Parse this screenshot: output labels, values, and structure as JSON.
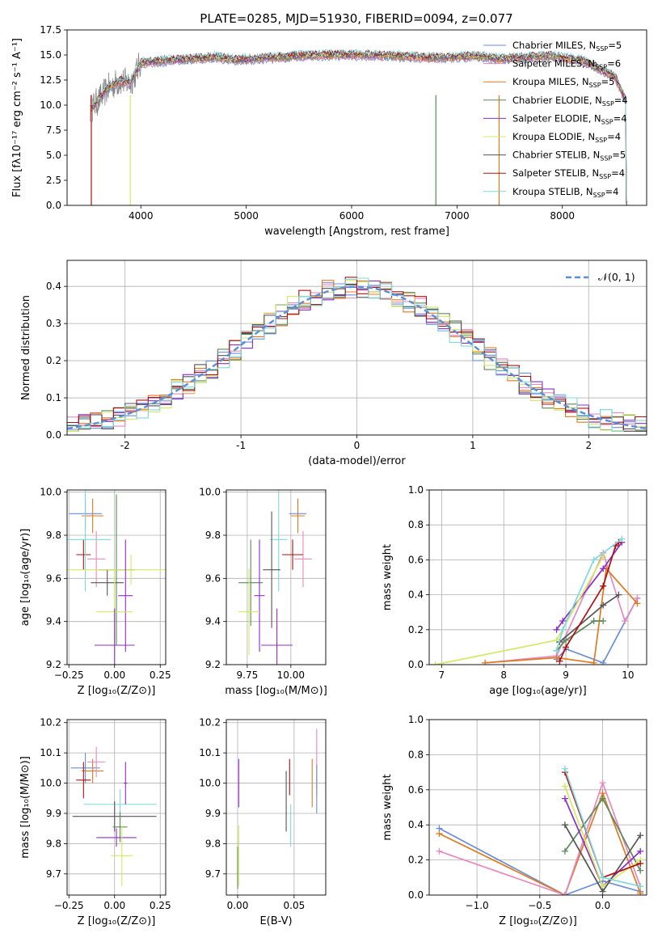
{
  "figure_title": "PLATE=0285, MJD=51930, FIBERID=0094, z=0.077",
  "colors": {
    "chabrier_miles": "#6a8fd8",
    "salpeter_miles": "#e58ac0",
    "kroupa_miles": "#e07a20",
    "chabrier_elodie": "#5a8a5a",
    "salpeter_elodie": "#8b2fc9",
    "kroupa_elodie": "#d4e862",
    "chabrier_stelib": "#555555",
    "salpeter_stelib": "#b01010",
    "kroupa_stelib": "#7fd8de",
    "normal_curve": "#5b8ed8"
  },
  "legend_spectrum": [
    {
      "key": "chabrier_miles",
      "prefix": "Chabrier MILES, N",
      "sub": "SSP",
      "suffix": "=5"
    },
    {
      "key": "salpeter_miles",
      "prefix": "Salpeter MILES, N",
      "sub": "SSP",
      "suffix": "=6"
    },
    {
      "key": "kroupa_miles",
      "prefix": "Kroupa MILES, N",
      "sub": "SSP",
      "suffix": "=5"
    },
    {
      "key": "chabrier_elodie",
      "prefix": "Chabrier ELODIE, N",
      "sub": "SSP",
      "suffix": "=4"
    },
    {
      "key": "salpeter_elodie",
      "prefix": "Salpeter ELODIE, N",
      "sub": "SSP",
      "suffix": "=4"
    },
    {
      "key": "kroupa_elodie",
      "prefix": "Kroupa ELODIE, N",
      "sub": "SSP",
      "suffix": "=4"
    },
    {
      "key": "chabrier_stelib",
      "prefix": "Chabrier STELIB, N",
      "sub": "SSP",
      "suffix": "=5"
    },
    {
      "key": "salpeter_stelib",
      "prefix": "Salpeter STELIB, N",
      "sub": "SSP",
      "suffix": "=4"
    },
    {
      "key": "kroupa_stelib",
      "prefix": "Kroupa STELIB, N",
      "sub": "SSP",
      "suffix": "=4"
    }
  ],
  "chart_data": [
    {
      "id": "spectrum",
      "type": "line",
      "xlabel": "wavelength [Angstrom, rest frame]",
      "ylabel": "Flux [fλ10⁻¹⁷ erg cm⁻² s⁻¹ A⁻¹]",
      "xlim": [
        3300,
        8800
      ],
      "ylim": [
        0,
        17.5
      ],
      "xticks": [
        4000,
        5000,
        6000,
        7000,
        8000
      ],
      "yticks": [
        0.0,
        2.5,
        5.0,
        7.5,
        10.0,
        12.5,
        15.0,
        17.5
      ],
      "grid": false,
      "legend_position": "upper right",
      "continuum": [
        [
          3520,
          9.6
        ],
        [
          3600,
          10.5
        ],
        [
          3700,
          11.8
        ],
        [
          3800,
          12.4
        ],
        [
          3900,
          12.2
        ],
        [
          4000,
          14.2
        ],
        [
          4100,
          14.3
        ],
        [
          4300,
          14.5
        ],
        [
          4500,
          14.6
        ],
        [
          4700,
          14.8
        ],
        [
          4900,
          14.5
        ],
        [
          5200,
          14.7
        ],
        [
          5500,
          14.9
        ],
        [
          5800,
          15.0
        ],
        [
          6100,
          15.0
        ],
        [
          6400,
          14.9
        ],
        [
          6800,
          14.7
        ],
        [
          7200,
          14.9
        ],
        [
          7400,
          14.6
        ],
        [
          7600,
          14.7
        ],
        [
          7900,
          14.9
        ],
        [
          8200,
          14.4
        ],
        [
          8500,
          12.8
        ],
        [
          8600,
          10.5
        ]
      ]
    },
    {
      "id": "residuals",
      "type": "line",
      "xlabel": "(data-model)/error",
      "ylabel": "Normed distribution",
      "xlim": [
        -2.5,
        2.5
      ],
      "ylim": [
        0,
        0.47
      ],
      "xticks": [
        -2,
        -1,
        0,
        1,
        2
      ],
      "yticks": [
        0.0,
        0.1,
        0.2,
        0.3,
        0.4
      ],
      "grid": true,
      "legend_position": "upper right",
      "legend": [
        {
          "key": "normal_curve",
          "label": "𝒩(0, 1)"
        }
      ],
      "normal_curve": {
        "mean": 0,
        "sigma": 1
      }
    },
    {
      "id": "age_vs_Z",
      "type": "scatter",
      "xlabel": "Z [log₁₀(Z/Z⊙)]",
      "ylabel": "age  [log₁₀(age/yr)]",
      "xlim": [
        -0.26,
        0.28
      ],
      "ylim": [
        9.2,
        10.01
      ],
      "xticks": [
        -0.25,
        0.0,
        0.25
      ],
      "xticklabels": [
        "−0.25",
        "0.00",
        "0.25"
      ],
      "yticks": [
        9.2,
        9.4,
        9.6,
        9.8,
        10.0
      ],
      "grid": true,
      "points": [
        {
          "key": "chabrier_miles",
          "x": -0.16,
          "xerr": 0.09,
          "y": 9.9,
          "yerr": 0.07
        },
        {
          "key": "kroupa_miles",
          "x": -0.12,
          "xerr": 0.06,
          "y": 9.89,
          "yerr": 0.08
        },
        {
          "key": "salpeter_miles",
          "x": -0.1,
          "xerr": 0.05,
          "y": 9.69,
          "yerr": 0.13
        },
        {
          "key": "salpeter_stelib",
          "x": -0.17,
          "xerr": 0.04,
          "y": 9.71,
          "yerr": 0.07
        },
        {
          "key": "kroupa_stelib",
          "x": -0.16,
          "xerr": 0.14,
          "y": 9.78,
          "yerr": 0.24
        },
        {
          "key": "chabrier_elodie",
          "x": 0.01,
          "xerr": 0.1,
          "y": 9.64,
          "yerr": 0.35
        },
        {
          "key": "chabrier_stelib",
          "x": -0.04,
          "xerr": 0.09,
          "y": 9.58,
          "yerr": 0.06
        },
        {
          "key": "kroupa_elodie",
          "x": 0.09,
          "xerr": 0.35,
          "y": 9.64,
          "yerr": 0.07
        },
        {
          "key": "salpeter_elodie",
          "x": 0.06,
          "xerr": 0.04,
          "y": 9.52,
          "yerr": 0.26
        },
        {
          "key": "kroupa_elodie",
          "x": 0.0,
          "xerr": 0.1,
          "y": 9.445,
          "yerr": 0.2
        },
        {
          "key": "salpeter_elodie",
          "x": 0.0,
          "xerr": 0.11,
          "y": 9.29,
          "yerr": 0.17
        }
      ]
    },
    {
      "id": "age_vs_mass",
      "type": "scatter",
      "xlabel": "mass [log₁₀(M/M⊙)]",
      "ylabel": "",
      "xlim": [
        9.63,
        10.2
      ],
      "ylim": [
        9.2,
        10.01
      ],
      "xticks": [
        9.75,
        10.0
      ],
      "xticklabels": [
        "9.75",
        "10.00"
      ],
      "yticks": [
        9.2,
        9.4,
        9.6,
        9.8,
        10.0
      ],
      "grid": true,
      "points": [
        {
          "key": "chabrier_miles",
          "x": 10.04,
          "xerr": 0.05,
          "y": 9.9,
          "yerr": 0.07
        },
        {
          "key": "kroupa_miles",
          "x": 10.04,
          "xerr": 0.04,
          "y": 9.89,
          "yerr": 0.08
        },
        {
          "key": "salpeter_miles",
          "x": 10.07,
          "xerr": 0.05,
          "y": 9.69,
          "yerr": 0.13
        },
        {
          "key": "salpeter_stelib",
          "x": 10.01,
          "xerr": 0.06,
          "y": 9.71,
          "yerr": 0.07
        },
        {
          "key": "kroupa_stelib",
          "x": 9.93,
          "xerr": 0.05,
          "y": 9.78,
          "yerr": 0.24
        },
        {
          "key": "chabrier_stelib",
          "x": 9.89,
          "xerr": 0.05,
          "y": 9.64,
          "yerr": 0.27
        },
        {
          "key": "chabrier_elodie",
          "x": 9.77,
          "xerr": 0.07,
          "y": 9.58,
          "yerr": 0.2
        },
        {
          "key": "salpeter_elodie",
          "x": 9.82,
          "xerr": 0.03,
          "y": 9.52,
          "yerr": 0.26
        },
        {
          "key": "kroupa_elodie",
          "x": 9.76,
          "xerr": 0.06,
          "y": 9.445,
          "yerr": 0.2
        },
        {
          "key": "salpeter_elodie",
          "x": 9.92,
          "xerr": 0.09,
          "y": 9.29,
          "yerr": 0.17
        }
      ]
    },
    {
      "id": "mass_weight_vs_age",
      "type": "line",
      "xlabel": "age  [log₁₀(age/yr)]",
      "ylabel": "mass weight",
      "xlim": [
        6.8,
        10.3
      ],
      "ylim": [
        0,
        1.0
      ],
      "xticks": [
        7,
        8,
        9,
        10
      ],
      "yticks": [
        0.0,
        0.2,
        0.4,
        0.6,
        0.8,
        1.0
      ],
      "grid": true,
      "series": [
        {
          "key": "chabrier_miles",
          "x": [
            8.85,
            9.0,
            9.6,
            10.15
          ],
          "y": [
            0.03,
            0.09,
            0.01,
            0.38
          ]
        },
        {
          "key": "salpeter_miles",
          "x": [
            7.7,
            8.85,
            9.6,
            9.95,
            10.15
          ],
          "y": [
            0.01,
            0.05,
            0.64,
            0.25,
            0.38
          ]
        },
        {
          "key": "kroupa_miles",
          "x": [
            7.7,
            8.85,
            9.45,
            9.65,
            10.15
          ],
          "y": [
            0.01,
            0.04,
            0.01,
            0.55,
            0.35
          ]
        },
        {
          "key": "chabrier_elodie",
          "x": [
            8.85,
            9.0,
            9.45,
            9.6
          ],
          "y": [
            0.08,
            0.14,
            0.25,
            0.25
          ]
        },
        {
          "key": "salpeter_elodie",
          "x": [
            8.85,
            8.95,
            9.6,
            9.9
          ],
          "y": [
            0.2,
            0.25,
            0.55,
            0.7
          ]
        },
        {
          "key": "kroupa_elodie",
          "x": [
            6.9,
            8.85,
            9.6
          ],
          "y": [
            0.0,
            0.14,
            0.62
          ]
        },
        {
          "key": "chabrier_stelib",
          "x": [
            8.9,
            9.6,
            9.85
          ],
          "y": [
            0.13,
            0.34,
            0.4
          ]
        },
        {
          "key": "salpeter_stelib",
          "x": [
            8.9,
            9.0,
            9.6,
            9.8,
            9.85
          ],
          "y": [
            0.02,
            0.1,
            0.45,
            0.68,
            0.7
          ]
        },
        {
          "key": "kroupa_stelib",
          "x": [
            8.85,
            8.95,
            9.45,
            9.9
          ],
          "y": [
            0.08,
            0.2,
            0.6,
            0.72
          ]
        }
      ]
    },
    {
      "id": "mass_vs_Z",
      "type": "scatter",
      "xlabel": "Z [log₁₀(Z/Z⊙)]",
      "ylabel": "mass [log₁₀(M/M⊙)]",
      "xlim": [
        -0.26,
        0.28
      ],
      "ylim": [
        9.63,
        10.21
      ],
      "xticks": [
        -0.25,
        0.0,
        0.25
      ],
      "xticklabels": [
        "−0.25",
        "0.00",
        "0.25"
      ],
      "yticks": [
        9.7,
        9.8,
        9.9,
        10.0,
        10.1,
        10.2
      ],
      "grid": true,
      "points": [
        {
          "key": "chabrier_miles",
          "x": -0.16,
          "xerr": 0.08,
          "y": 10.05,
          "yerr": 0.05
        },
        {
          "key": "kroupa_miles",
          "x": -0.12,
          "xerr": 0.06,
          "y": 10.04,
          "yerr": 0.04
        },
        {
          "key": "salpeter_miles",
          "x": -0.1,
          "xerr": 0.05,
          "y": 10.07,
          "yerr": 0.05
        },
        {
          "key": "salpeter_stelib",
          "x": -0.17,
          "xerr": 0.04,
          "y": 10.01,
          "yerr": 0.06
        },
        {
          "key": "kroupa_stelib",
          "x": 0.03,
          "xerr": 0.2,
          "y": 9.93,
          "yerr": 0.05
        },
        {
          "key": "chabrier_stelib",
          "x": 0.0,
          "xerr": 0.23,
          "y": 9.89,
          "yerr": 0.05
        },
        {
          "key": "chabrier_elodie",
          "x": 0.03,
          "xerr": 0.04,
          "y": 9.855,
          "yerr": 0.05
        },
        {
          "key": "salpeter_elodie",
          "x": 0.01,
          "xerr": 0.11,
          "y": 9.82,
          "yerr": 0.03
        },
        {
          "key": "kroupa_elodie",
          "x": 0.04,
          "xerr": 0.06,
          "y": 9.76,
          "yerr": 0.1
        },
        {
          "key": "salpeter_elodie",
          "x": 0.06,
          "xerr": 0.01,
          "y": 10.0,
          "yerr": 0.07
        }
      ]
    },
    {
      "id": "mass_vs_EBV",
      "type": "scatter",
      "xlabel": "E(B-V)",
      "ylabel": "",
      "xlim": [
        -0.01,
        0.078
      ],
      "ylim": [
        9.63,
        10.21
      ],
      "xticks": [
        0.0,
        0.05
      ],
      "xticklabels": [
        "0.00",
        "0.05"
      ],
      "yticks": [
        9.7,
        9.8,
        9.9,
        10.0,
        10.1,
        10.2
      ],
      "grid": true,
      "points": [
        {
          "key": "salpeter_elodie",
          "x": 0.001,
          "xerr": 0,
          "y": 10.0,
          "yerr": 0.08
        },
        {
          "key": "kroupa_elodie",
          "x": 0.001,
          "xerr": 0,
          "y": 9.76,
          "yerr": 0.1
        },
        {
          "key": "chabrier_elodie",
          "x": 0.0,
          "xerr": 0,
          "y": 9.72,
          "yerr": 0.07
        },
        {
          "key": "chabrier_stelib",
          "x": 0.043,
          "xerr": 0,
          "y": 9.94,
          "yerr": 0.1
        },
        {
          "key": "salpeter_stelib",
          "x": 0.046,
          "xerr": 0,
          "y": 10.02,
          "yerr": 0.06
        },
        {
          "key": "kroupa_stelib",
          "x": 0.047,
          "xerr": 0,
          "y": 9.86,
          "yerr": 0.07
        },
        {
          "key": "kroupa_miles",
          "x": 0.066,
          "xerr": 0,
          "y": 10.0,
          "yerr": 0.08
        },
        {
          "key": "salpeter_miles",
          "x": 0.07,
          "xerr": 0,
          "y": 10.07,
          "yerr": 0.11
        },
        {
          "key": "chabrier_miles",
          "x": 0.07,
          "xerr": 0,
          "y": 9.98,
          "yerr": 0.08
        }
      ]
    },
    {
      "id": "mass_weight_vs_Z",
      "type": "line",
      "xlabel": "Z [log₁₀(Z/Z⊙)]",
      "ylabel": "mass weight",
      "xlim": [
        -1.38,
        0.35
      ],
      "ylim": [
        0,
        1.0
      ],
      "xticks": [
        -1.0,
        -0.5,
        0.0
      ],
      "xticklabels": [
        "−1.0",
        "−0.5",
        "0.0"
      ],
      "yticks": [
        0.0,
        0.2,
        0.4,
        0.6,
        0.8,
        1.0
      ],
      "grid": true,
      "series": [
        {
          "key": "chabrier_miles",
          "x": [
            -1.3,
            -0.3,
            0.0,
            0.3
          ],
          "y": [
            0.38,
            0.0,
            0.08,
            0.02
          ]
        },
        {
          "key": "kroupa_miles",
          "x": [
            -1.3,
            -0.3,
            0.0,
            0.3
          ],
          "y": [
            0.35,
            0.0,
            0.58,
            0.01
          ]
        },
        {
          "key": "salpeter_miles",
          "x": [
            -1.3,
            -0.3,
            0.0,
            0.3
          ],
          "y": [
            0.25,
            0.0,
            0.64,
            0.05
          ]
        },
        {
          "key": "chabrier_elodie",
          "x": [
            -0.3,
            0.0,
            0.3
          ],
          "y": [
            0.25,
            0.55,
            0.14
          ]
        },
        {
          "key": "salpeter_elodie",
          "x": [
            -0.3,
            0.0,
            0.3
          ],
          "y": [
            0.55,
            0.05,
            0.25
          ]
        },
        {
          "key": "kroupa_elodie",
          "x": [
            -0.3,
            0.0,
            0.3
          ],
          "y": [
            0.62,
            0.05,
            0.2
          ]
        },
        {
          "key": "chabrier_stelib",
          "x": [
            -0.3,
            0.0,
            0.3
          ],
          "y": [
            0.4,
            0.02,
            0.34
          ]
        },
        {
          "key": "salpeter_stelib",
          "x": [
            -0.3,
            0.0,
            0.3
          ],
          "y": [
            0.7,
            0.1,
            0.18
          ]
        },
        {
          "key": "kroupa_stelib",
          "x": [
            -0.3,
            0.0,
            0.3
          ],
          "y": [
            0.72,
            0.1,
            0.05
          ]
        }
      ]
    }
  ]
}
